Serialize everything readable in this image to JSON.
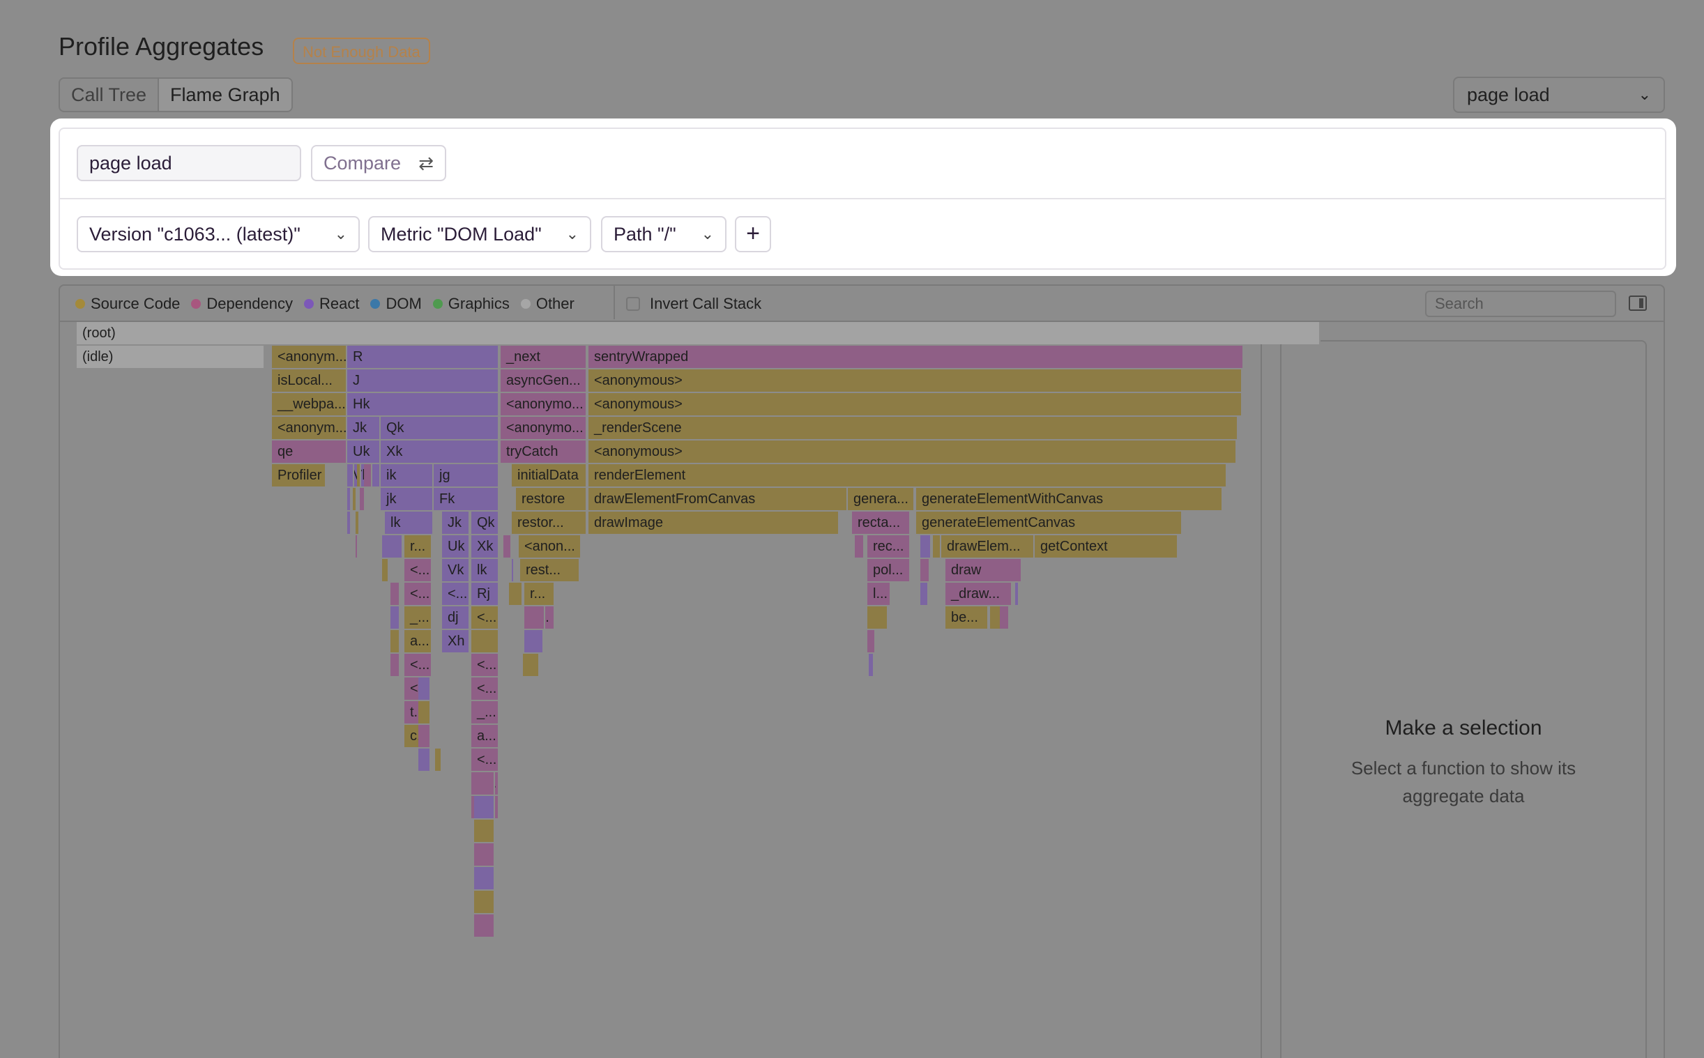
{
  "page": {
    "title": "Profile Aggregates",
    "badge": "Not Enough Data"
  },
  "tabs": [
    {
      "label": "Call Tree"
    },
    {
      "label": "Flame Graph",
      "active": true
    }
  ],
  "transaction_select": {
    "value": "page load"
  },
  "panel": {
    "search_value": "page load",
    "compare_label": "Compare",
    "filters": [
      {
        "label": "Version \"c1063...  (latest)\""
      },
      {
        "label": "Metric \"DOM Load\""
      },
      {
        "label": "Path \"/\""
      }
    ],
    "add_label": "+"
  },
  "legend": [
    {
      "label": "Source Code",
      "color": "#a48a3a"
    },
    {
      "label": "Dependency",
      "color": "#a8577f"
    },
    {
      "label": "React",
      "color": "#7c58b8"
    },
    {
      "label": "DOM",
      "color": "#3b78a8"
    },
    {
      "label": "Graphics",
      "color": "#4f9a4f"
    },
    {
      "label": "Other",
      "color": "#a6a6a6"
    }
  ],
  "invert_label": "Invert Call Stack",
  "search_placeholder": "Search",
  "details": {
    "title": "Make a selection",
    "subtitle": "Select a function to show its aggregate data"
  },
  "frames": [
    {
      "label": "(root)",
      "c": "c-other"
    },
    {
      "label": "(idle)",
      "c": "c-other"
    },
    {
      "label": "<anonym...",
      "c": "c-src"
    },
    {
      "label": "R",
      "c": "c-react"
    },
    {
      "label": "_next",
      "c": "c-dep"
    },
    {
      "label": "sentryWrapped",
      "c": "c-dep"
    },
    {
      "label": "isLocal...",
      "c": "c-src"
    },
    {
      "label": "J",
      "c": "c-react"
    },
    {
      "label": "asyncGen...",
      "c": "c-dep"
    },
    {
      "label": "<anonymous>",
      "c": "c-src"
    },
    {
      "label": "__webpa...",
      "c": "c-src"
    },
    {
      "label": "Hk",
      "c": "c-react"
    },
    {
      "label": "<anonymo...",
      "c": "c-dep"
    },
    {
      "label": "<anonymous>",
      "c": "c-src"
    },
    {
      "label": "<anonym...",
      "c": "c-src"
    },
    {
      "label": "Jk",
      "c": "c-react"
    },
    {
      "label": "Qk",
      "c": "c-react"
    },
    {
      "label": "<anonymo...",
      "c": "c-dep"
    },
    {
      "label": "_renderScene",
      "c": "c-src"
    },
    {
      "label": "qe",
      "c": "c-dep"
    },
    {
      "label": "Uk",
      "c": "c-react"
    },
    {
      "label": "Xk",
      "c": "c-react"
    },
    {
      "label": "tryCatch",
      "c": "c-dep"
    },
    {
      "label": "<anonymous>",
      "c": "c-src"
    },
    {
      "label": "Profiler",
      "c": "c-src"
    },
    {
      "label": "Vk",
      "c": "c-react"
    },
    {
      "label": "ik",
      "c": "c-react"
    },
    {
      "label": "jg",
      "c": "c-react"
    },
    {
      "label": "initialData",
      "c": "c-src"
    },
    {
      "label": "renderElement",
      "c": "c-src"
    },
    {
      "label": "jk",
      "c": "c-react"
    },
    {
      "label": "Fk",
      "c": "c-react"
    },
    {
      "label": "restore",
      "c": "c-src"
    },
    {
      "label": "drawElementFromCanvas",
      "c": "c-src"
    },
    {
      "label": "genera...",
      "c": "c-src"
    },
    {
      "label": "generateElementWithCanvas",
      "c": "c-src"
    },
    {
      "label": "lk",
      "c": "c-react"
    },
    {
      "label": "Jk",
      "c": "c-react"
    },
    {
      "label": "Qk",
      "c": "c-react"
    },
    {
      "label": "restor...",
      "c": "c-src"
    },
    {
      "label": "drawImage",
      "c": "c-src"
    },
    {
      "label": "recta...",
      "c": "c-dep"
    },
    {
      "label": "generateElementCanvas",
      "c": "c-src"
    },
    {
      "label": "r...",
      "c": "c-src"
    },
    {
      "label": "Uk",
      "c": "c-react"
    },
    {
      "label": "Xk",
      "c": "c-react"
    },
    {
      "label": "<anon...",
      "c": "c-src"
    },
    {
      "label": "rec...",
      "c": "c-dep"
    },
    {
      "label": "drawElem...",
      "c": "c-src"
    },
    {
      "label": "getContext",
      "c": "c-src"
    },
    {
      "label": "<...",
      "c": "c-dep"
    },
    {
      "label": "Vk",
      "c": "c-react"
    },
    {
      "label": "lk",
      "c": "c-react"
    },
    {
      "label": "rest...",
      "c": "c-src"
    },
    {
      "label": "pol...",
      "c": "c-dep"
    },
    {
      "label": "draw",
      "c": "c-dep"
    },
    {
      "label": "<...",
      "c": "c-dep"
    },
    {
      "label": "<...",
      "c": "c-react"
    },
    {
      "label": "Rj",
      "c": "c-react"
    },
    {
      "label": "r...",
      "c": "c-src"
    },
    {
      "label": "l...",
      "c": "c-dep"
    },
    {
      "label": "_draw...",
      "c": "c-dep"
    },
    {
      "label": "_...",
      "c": "c-src"
    },
    {
      "label": "dj",
      "c": "c-react"
    },
    {
      "label": "<...",
      "c": "c-src"
    },
    {
      "label": "_...",
      "c": "c-dep"
    },
    {
      "label": "be...",
      "c": "c-src"
    },
    {
      "label": "a...",
      "c": "c-src"
    },
    {
      "label": "Xh",
      "c": "c-react"
    },
    {
      "label": "i...",
      "c": "c-src"
    },
    {
      "label": "<...",
      "c": "c-dep"
    },
    {
      "label": "<...",
      "c": "c-dep"
    },
    {
      "label": "<...",
      "c": "c-dep"
    },
    {
      "label": "<...",
      "c": "c-dep"
    },
    {
      "label": "t...",
      "c": "c-dep"
    },
    {
      "label": "_...",
      "c": "c-dep"
    },
    {
      "label": "c...",
      "c": "c-src"
    },
    {
      "label": "a...",
      "c": "c-dep"
    },
    {
      "label": "<...",
      "c": "c-dep"
    },
    {
      "label": "<...",
      "c": "c-dep"
    },
    {
      "label": "t...",
      "c": "c-dep"
    }
  ]
}
